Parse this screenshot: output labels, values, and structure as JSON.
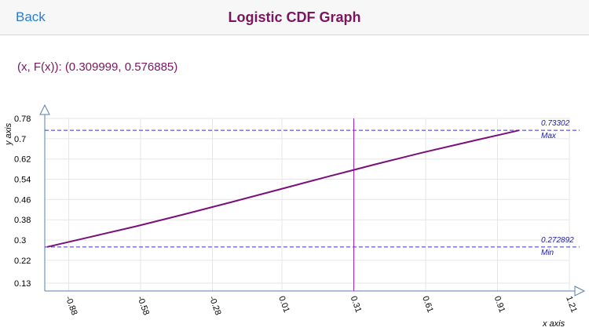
{
  "nav": {
    "back_label": "Back",
    "title": "Logistic CDF Graph"
  },
  "readout": "(x, F(x)): (0.309999, 0.576885)",
  "colors": {
    "accent": "#7a1560",
    "curve": "#7a0f7a",
    "reference": "#3a33cc",
    "cursor": "#a020c0",
    "link": "#2a7ccf"
  },
  "chart_data": {
    "type": "line",
    "xlabel": "x axis",
    "ylabel": "y axis",
    "x_ticks": [
      "-0.88",
      "-0.58",
      "-0.28",
      "0.01",
      "0.31",
      "0.61",
      "0.91",
      "1.21"
    ],
    "y_ticks": [
      "0.13",
      "0.22",
      "0.3",
      "0.38",
      "0.46",
      "0.54",
      "0.62",
      "0.7",
      "0.78"
    ],
    "xlim": [
      -0.98,
      1.21
    ],
    "ylim": [
      0.13,
      0.78
    ],
    "grid": true,
    "series": [
      {
        "x": [
          -0.97,
          -0.8,
          -0.6,
          -0.4,
          -0.2,
          0.0,
          0.2,
          0.31,
          0.4,
          0.6,
          0.8,
          1.0
        ],
        "y": [
          0.2729,
          0.31,
          0.354,
          0.401,
          0.45,
          0.5,
          0.55,
          0.5769,
          0.599,
          0.646,
          0.69,
          0.733
        ]
      }
    ],
    "cursor": {
      "x": 0.309999,
      "y": 0.576885
    },
    "reference_lines": [
      {
        "label": "Max",
        "value_text": "0.73302",
        "y": 0.73302
      },
      {
        "label": "Min",
        "value_text": "0.272892",
        "y": 0.272892
      }
    ]
  }
}
